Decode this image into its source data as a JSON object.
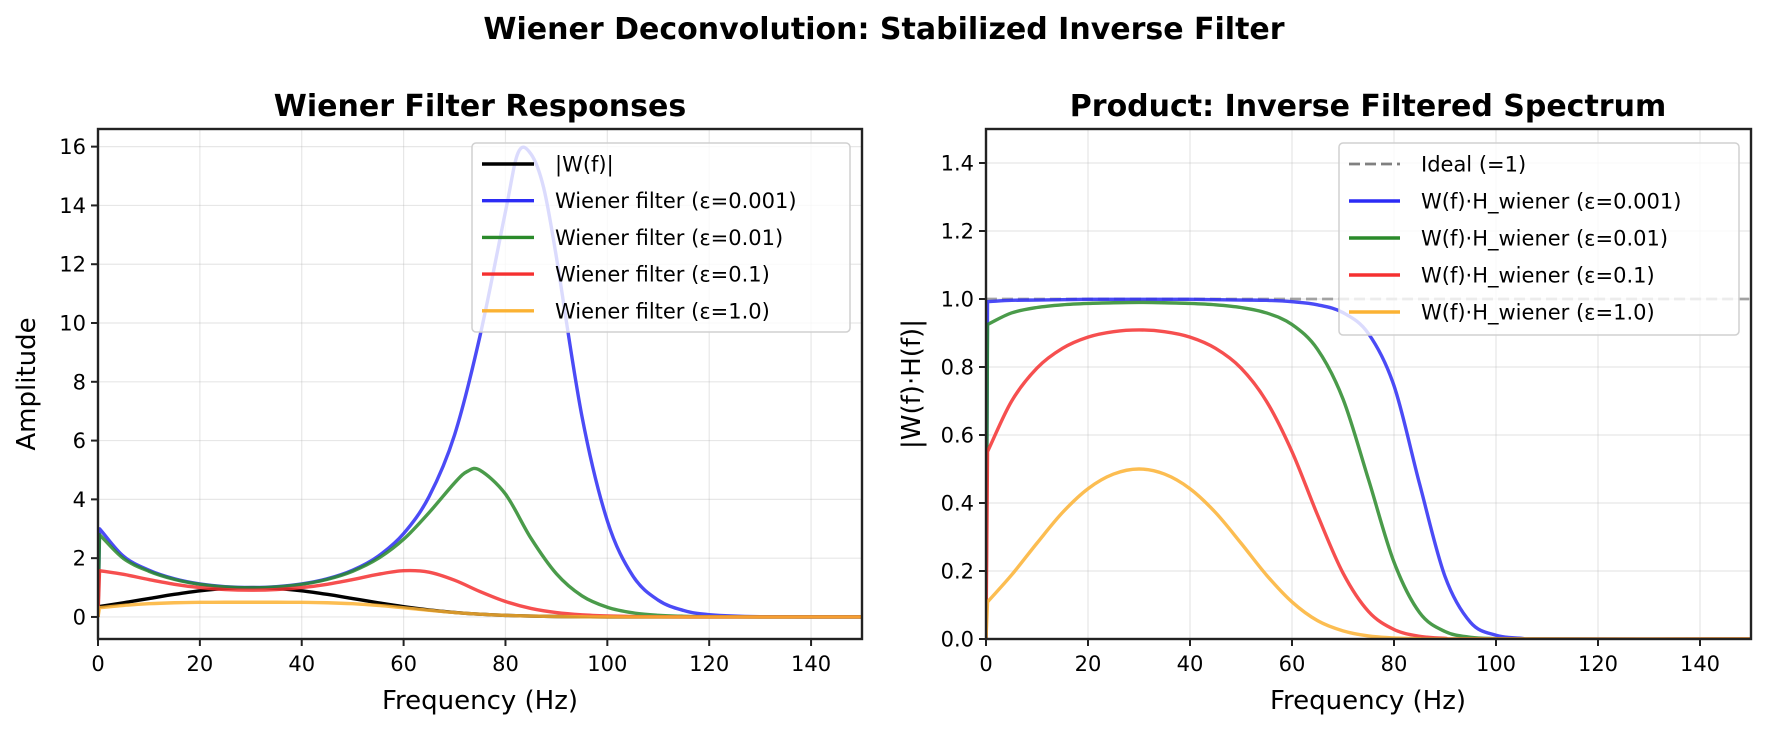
{
  "figure": {
    "suptitle": "Wiener Deconvolution: Stabilized Inverse Filter"
  },
  "chart_data": [
    {
      "type": "line",
      "title": "Wiener Filter Responses",
      "xlabel": "Frequency (Hz)",
      "ylabel": "Amplitude",
      "xlim": [
        0,
        150
      ],
      "ylim": [
        -0.75,
        16.6
      ],
      "xticks": [
        "0",
        "20",
        "40",
        "60",
        "80",
        "100",
        "120",
        "140"
      ],
      "yticks": [
        "0",
        "2",
        "4",
        "6",
        "8",
        "10",
        "12",
        "14",
        "16"
      ],
      "grid": true,
      "legend_position": "upper right",
      "series": [
        {
          "name": "|W(f)|",
          "color": "#000000",
          "x": [
            0,
            5,
            10,
            15,
            20,
            25,
            30,
            35,
            40,
            45,
            50,
            55,
            60,
            65,
            70,
            75,
            80,
            85,
            90,
            95,
            100,
            110,
            120,
            150
          ],
          "y": [
            0.35,
            0.482,
            0.627,
            0.769,
            0.89,
            0.971,
            1.0,
            0.971,
            0.89,
            0.769,
            0.627,
            0.482,
            0.35,
            0.24,
            0.155,
            0.094,
            0.054,
            0.029,
            0.015,
            0.007,
            0.003,
            0.001,
            0.0,
            0.0
          ]
        },
        {
          "name": "Wiener filter (ε=0.001)",
          "color": "#0000ff",
          "x": [
            0,
            0.3,
            5,
            10,
            15,
            20,
            25,
            30,
            35,
            40,
            45,
            50,
            55,
            60,
            65,
            70,
            75,
            80,
            82.5,
            85,
            87.5,
            90,
            95,
            100,
            105,
            110,
            115,
            120,
            130,
            150
          ],
          "y": [
            0.0,
            3.0,
            2.066,
            1.591,
            1.298,
            1.122,
            1.029,
            0.999,
            1.029,
            1.122,
            1.298,
            1.591,
            2.066,
            2.834,
            4.096,
            6.19,
            9.56,
            13.79,
            15.8,
            15.75,
            14.6,
            12.24,
            6.84,
            3.27,
            1.4,
            0.57,
            0.22,
            0.078,
            0.01,
            0.0
          ]
        },
        {
          "name": "Wiener filter (ε=0.01)",
          "color": "#008000",
          "x": [
            0,
            0.3,
            5,
            10,
            15,
            20,
            25,
            30,
            35,
            40,
            45,
            50,
            55,
            60,
            65,
            70,
            72.5,
            75,
            80,
            85,
            90,
            95,
            100,
            105,
            110,
            115,
            120,
            130,
            150
          ],
          "y": [
            0.0,
            2.8,
            1.989,
            1.555,
            1.279,
            1.11,
            1.019,
            0.99,
            1.019,
            1.11,
            1.279,
            1.555,
            1.989,
            2.642,
            3.55,
            4.56,
            4.95,
            4.99,
            4.18,
            2.68,
            1.47,
            0.72,
            0.33,
            0.14,
            0.057,
            0.022,
            0.008,
            0.0,
            0.0
          ]
        },
        {
          "name": "Wiener filter (ε=0.1)",
          "color": "#ff0000",
          "x": [
            0,
            0.3,
            5,
            10,
            15,
            20,
            25,
            30,
            35,
            40,
            45,
            50,
            55,
            60,
            65,
            70,
            75,
            80,
            85,
            90,
            95,
            100,
            105,
            110,
            120,
            130,
            150
          ],
          "y": [
            0.0,
            1.573,
            1.45,
            1.272,
            1.112,
            0.998,
            0.931,
            0.909,
            0.931,
            0.998,
            1.112,
            1.272,
            1.45,
            1.573,
            1.523,
            1.25,
            0.864,
            0.525,
            0.29,
            0.15,
            0.072,
            0.033,
            0.014,
            0.006,
            0.001,
            0.0,
            0.0
          ]
        },
        {
          "name": "Wiener filter (ε=1.0)",
          "color": "#ffa500",
          "x": [
            0,
            0.3,
            5,
            10,
            15,
            20,
            25,
            30,
            35,
            40,
            45,
            50,
            55,
            60,
            65,
            70,
            75,
            80,
            85,
            90,
            95,
            100,
            110,
            120,
            150
          ],
          "y": [
            0.0,
            0.312,
            0.391,
            0.45,
            0.483,
            0.497,
            0.5,
            0.5,
            0.5,
            0.497,
            0.483,
            0.45,
            0.391,
            0.312,
            0.227,
            0.151,
            0.093,
            0.054,
            0.029,
            0.015,
            0.007,
            0.003,
            0.001,
            0.0,
            0.0
          ]
        }
      ]
    },
    {
      "type": "line",
      "title": "Product: Inverse Filtered Spectrum",
      "xlabel": "Frequency (Hz)",
      "ylabel": "|W(f)·H(f)|",
      "xlim": [
        0,
        150
      ],
      "ylim": [
        0,
        1.5
      ],
      "xticks": [
        "0",
        "20",
        "40",
        "60",
        "80",
        "100",
        "120",
        "140"
      ],
      "yticks": [
        "0.0",
        "0.2",
        "0.4",
        "0.6",
        "0.8",
        "1.0",
        "1.2",
        "1.4"
      ],
      "grid": true,
      "legend_position": "upper right",
      "series": [
        {
          "name": "Ideal (=1)",
          "color": "#808080",
          "dashed": true,
          "x": [
            0,
            150
          ],
          "y": [
            1.0,
            1.0
          ]
        },
        {
          "name": "W(f)·H_wiener (ε=0.001)",
          "color": "#0000ff",
          "x": [
            0,
            0.3,
            5,
            10,
            20,
            30,
            40,
            50,
            55,
            60,
            65,
            70,
            75,
            80,
            85,
            90,
            95,
            100,
            105,
            110,
            150
          ],
          "y": [
            0.0,
            0.992,
            0.996,
            0.997,
            0.999,
            0.999,
            0.999,
            0.997,
            0.996,
            0.992,
            0.983,
            0.96,
            0.898,
            0.745,
            0.457,
            0.184,
            0.049,
            0.011,
            0.002,
            0.0,
            0.0
          ]
        },
        {
          "name": "W(f)·H_wiener (ε=0.01)",
          "color": "#008000",
          "x": [
            0,
            0.3,
            5,
            10,
            15,
            20,
            25,
            30,
            35,
            40,
            45,
            50,
            55,
            60,
            65,
            70,
            75,
            80,
            85,
            90,
            95,
            100,
            105,
            150
          ],
          "y": [
            0.0,
            0.925,
            0.959,
            0.975,
            0.983,
            0.987,
            0.989,
            0.99,
            0.989,
            0.987,
            0.983,
            0.975,
            0.959,
            0.925,
            0.852,
            0.706,
            0.469,
            0.226,
            0.078,
            0.022,
            0.005,
            0.001,
            0.0,
            0.0
          ]
        },
        {
          "name": "W(f)·H_wiener (ε=0.1)",
          "color": "#ff0000",
          "x": [
            0,
            0.3,
            5,
            10,
            15,
            20,
            25,
            30,
            35,
            40,
            45,
            50,
            55,
            60,
            65,
            70,
            75,
            80,
            85,
            90,
            95,
            150
          ],
          "y": [
            0.0,
            0.551,
            0.699,
            0.797,
            0.855,
            0.888,
            0.904,
            0.909,
            0.904,
            0.888,
            0.855,
            0.797,
            0.699,
            0.551,
            0.365,
            0.194,
            0.081,
            0.028,
            0.008,
            0.002,
            0.0,
            0.0
          ]
        },
        {
          "name": "W(f)·H_wiener (ε=1.0)",
          "color": "#ffa500",
          "x": [
            0,
            0.3,
            5,
            10,
            15,
            20,
            25,
            30,
            35,
            40,
            45,
            50,
            55,
            60,
            65,
            70,
            75,
            80,
            85,
            90,
            150
          ],
          "y": [
            0.0,
            0.109,
            0.188,
            0.282,
            0.372,
            0.442,
            0.485,
            0.5,
            0.485,
            0.442,
            0.372,
            0.282,
            0.188,
            0.109,
            0.054,
            0.024,
            0.009,
            0.003,
            0.001,
            0.0,
            0.0
          ]
        }
      ]
    }
  ]
}
